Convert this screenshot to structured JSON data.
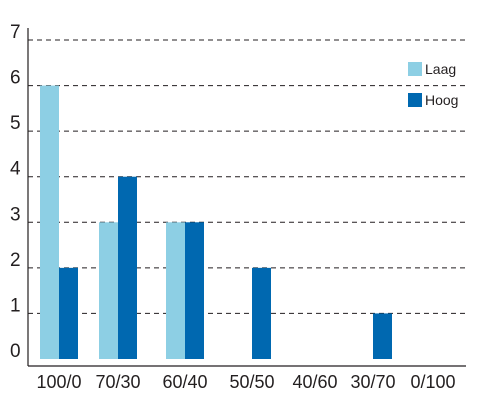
{
  "chart_data": {
    "type": "bar",
    "categories": [
      "100/0",
      "70/30",
      "60/40",
      "50/50",
      "40/60",
      "30/70",
      "0/100"
    ],
    "series": [
      {
        "name": "Laag",
        "values": [
          6,
          3,
          3,
          0,
          0,
          0,
          0
        ]
      },
      {
        "name": "Hoog",
        "values": [
          2,
          4,
          3,
          2,
          0,
          1,
          0
        ]
      }
    ],
    "ylim": [
      0,
      7
    ],
    "yticks": [
      "0",
      "1",
      "2",
      "3",
      "4",
      "5",
      "6",
      "7"
    ],
    "grid": "horizontal dashed",
    "legend_position": "top-right",
    "colors": {
      "Laag": "#8dcfe4",
      "Hoog": "#0068b0",
      "grid": "#231f20",
      "axis": "#231f20"
    }
  }
}
